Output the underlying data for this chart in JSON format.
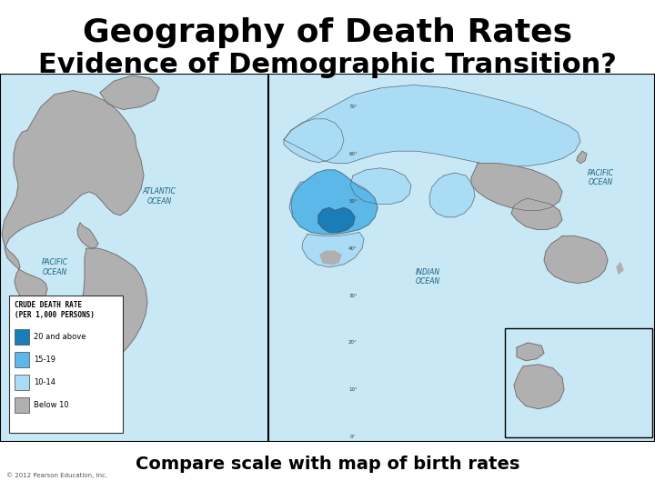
{
  "title_line1": "Geography of Death Rates",
  "title_line2": "Evidence of Demographic Transition?",
  "caption": "Compare scale with map of birth rates",
  "title_fontsize": 26,
  "title_line2_fontsize": 22,
  "caption_fontsize": 14,
  "title_color": "#000000",
  "caption_color": "#000000",
  "background_color": "#ffffff",
  "legend_title": "CRUDE DEATH RATE\n(PER 1,000 PERSONS)",
  "legend_items": [
    {
      "label": "20 and above",
      "color": "#1a7db5"
    },
    {
      "label": "15-19",
      "color": "#5bb8e8"
    },
    {
      "label": "10-14",
      "color": "#aadcf5"
    },
    {
      "label": "Below 10",
      "color": "#b0b0b0"
    }
  ],
  "ocean_color": "#c8e8f5",
  "land_gray_color": "#b0b0b0",
  "border_color": "#555555",
  "grid_color": "#888888",
  "map_border_color": "#000000"
}
